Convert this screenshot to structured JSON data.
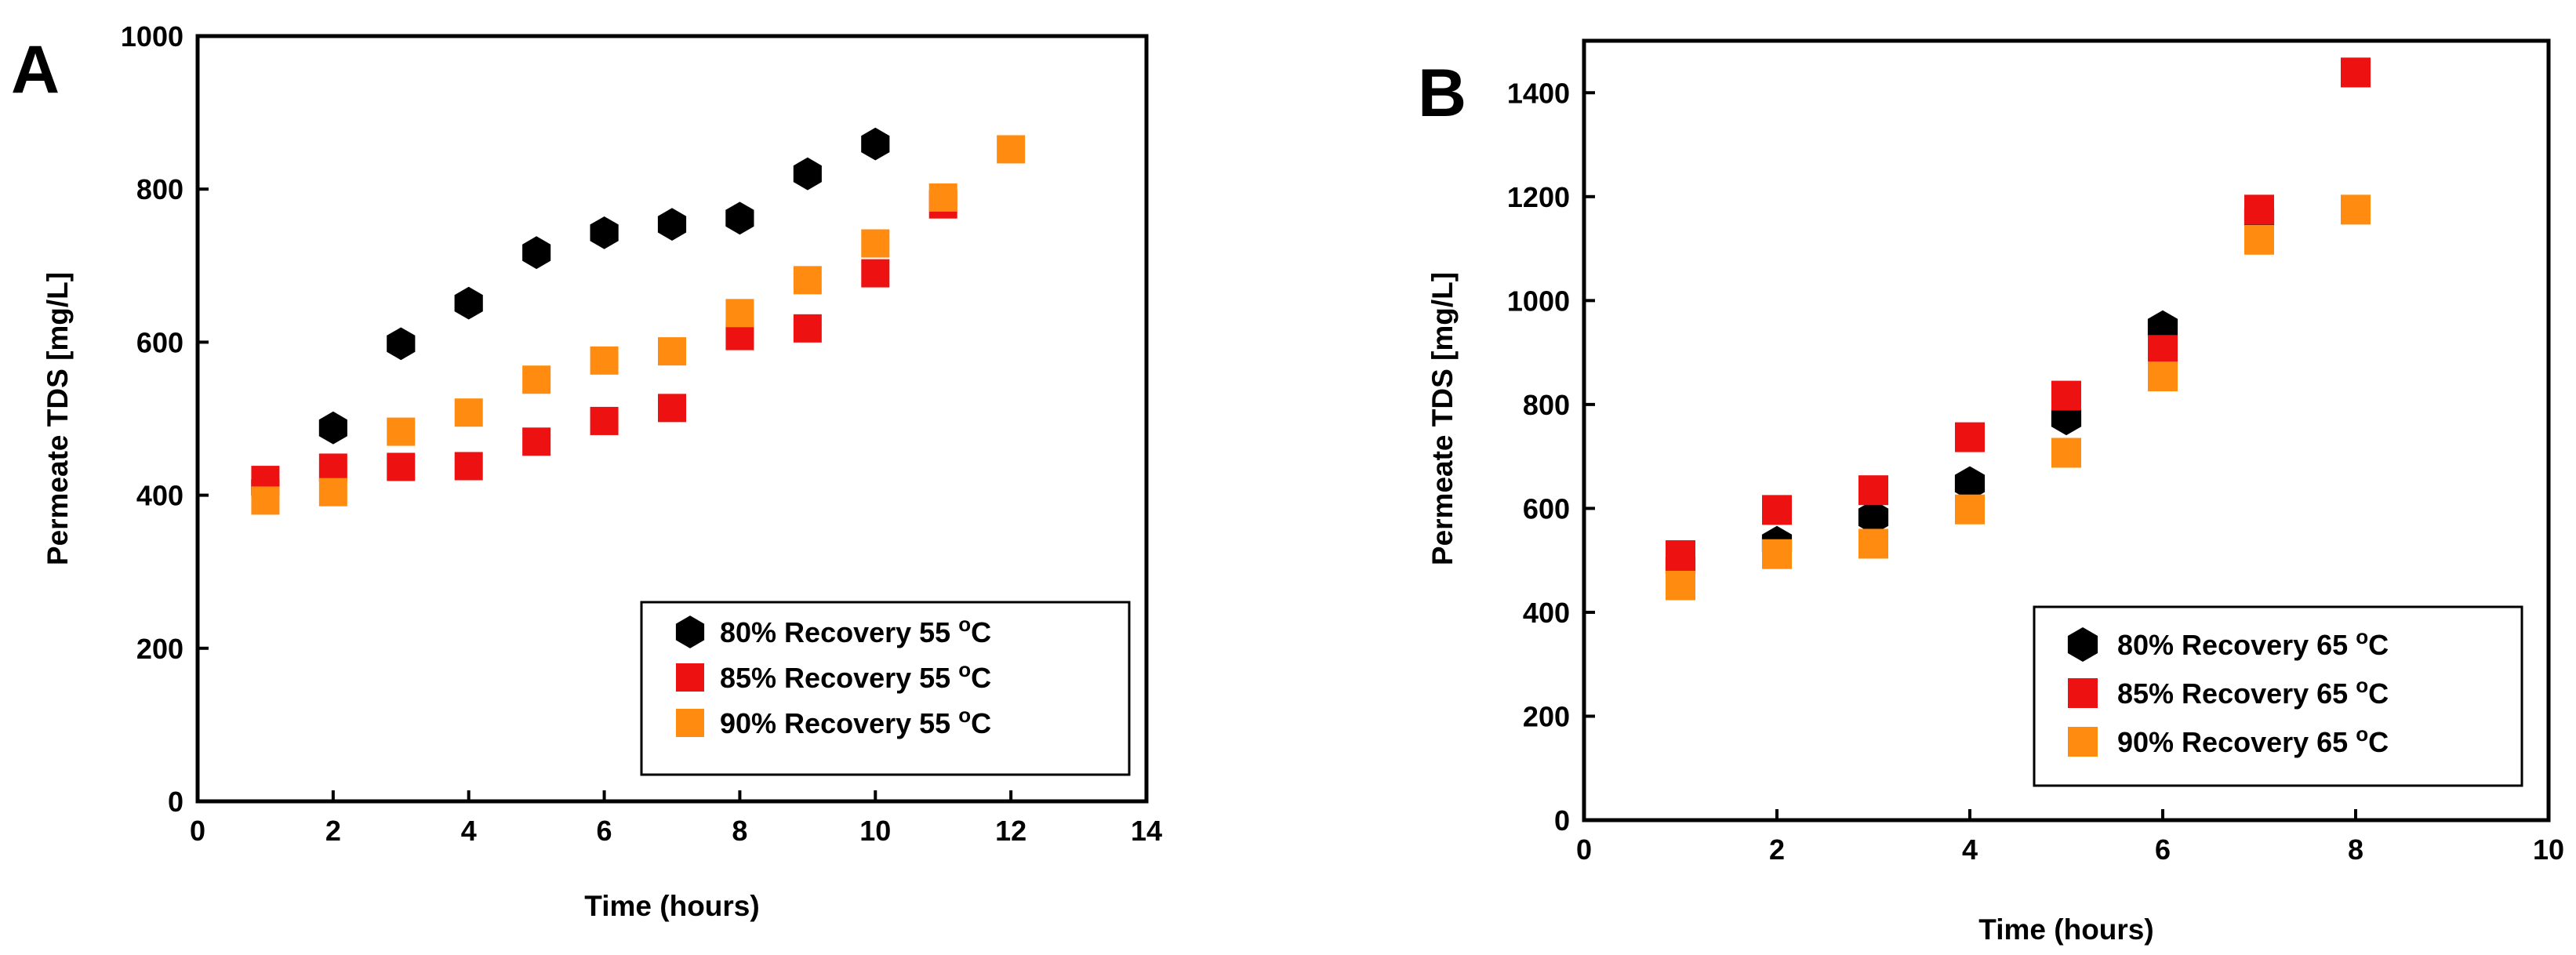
{
  "chart_data": [
    {
      "type": "scatter",
      "panel": "A",
      "xlabel": "Time (hours)",
      "ylabel": "Permeate TDS [mg/L]",
      "xlim": [
        0,
        14
      ],
      "ylim": [
        0,
        1000
      ],
      "xticks": [
        0,
        2,
        4,
        6,
        8,
        10,
        12,
        14
      ],
      "yticks": [
        0,
        200,
        400,
        600,
        800,
        1000
      ],
      "legend_position": "bottom-right",
      "series": [
        {
          "name": "80% Recovery 55",
          "unit": "oC",
          "marker": "hexagon",
          "color": "#000000",
          "x": [
            1,
            2,
            3,
            4,
            5,
            6,
            7,
            8,
            9,
            10
          ],
          "y": [
            410,
            488,
            598,
            651,
            717,
            743,
            754,
            762,
            820,
            859
          ]
        },
        {
          "name": "85% Recovery 55",
          "unit": "oC",
          "marker": "square",
          "color": "#EE1111",
          "x": [
            1,
            2,
            3,
            4,
            5,
            6,
            7,
            8,
            9,
            10,
            11
          ],
          "y": [
            420,
            436,
            437,
            438,
            470,
            497,
            514,
            608,
            618,
            690,
            780
          ]
        },
        {
          "name": "90% Recovery 55",
          "unit": "oC",
          "marker": "square",
          "color": "#FF8C10",
          "x": [
            1,
            2,
            3,
            4,
            5,
            6,
            7,
            8,
            9,
            10,
            11,
            12
          ],
          "y": [
            393,
            404,
            483,
            508,
            551,
            576,
            588,
            638,
            681,
            729,
            789,
            852
          ]
        }
      ]
    },
    {
      "type": "scatter",
      "panel": "B",
      "xlabel": "Time (hours)",
      "ylabel": "Permeate TDS [mg/L]",
      "xlim": [
        0,
        10
      ],
      "ylim": [
        0,
        1500
      ],
      "xticks": [
        0,
        2,
        4,
        6,
        8,
        10
      ],
      "yticks": [
        0,
        200,
        400,
        600,
        800,
        1000,
        1200,
        1400
      ],
      "legend_position": "bottom-right",
      "series": [
        {
          "name": "80% Recovery 65",
          "unit": "oC",
          "marker": "hexagon",
          "color": "#000000",
          "x": [
            1,
            2,
            3,
            4,
            5,
            6,
            7
          ],
          "y": [
            490,
            533,
            583,
            648,
            774,
            948,
            1160
          ]
        },
        {
          "name": "85% Recovery 65",
          "unit": "oC",
          "marker": "square",
          "color": "#EE1111",
          "x": [
            1,
            2,
            3,
            4,
            5,
            6,
            7,
            8
          ],
          "y": [
            510,
            597,
            635,
            737,
            817,
            905,
            1175,
            1439
          ]
        },
        {
          "name": "90% Recovery 65",
          "unit": "oC",
          "marker": "square",
          "color": "#FF8C10",
          "x": [
            1,
            2,
            3,
            4,
            5,
            6,
            7,
            8
          ],
          "y": [
            452,
            512,
            532,
            598,
            707,
            854,
            1117,
            1175
          ]
        }
      ]
    }
  ]
}
